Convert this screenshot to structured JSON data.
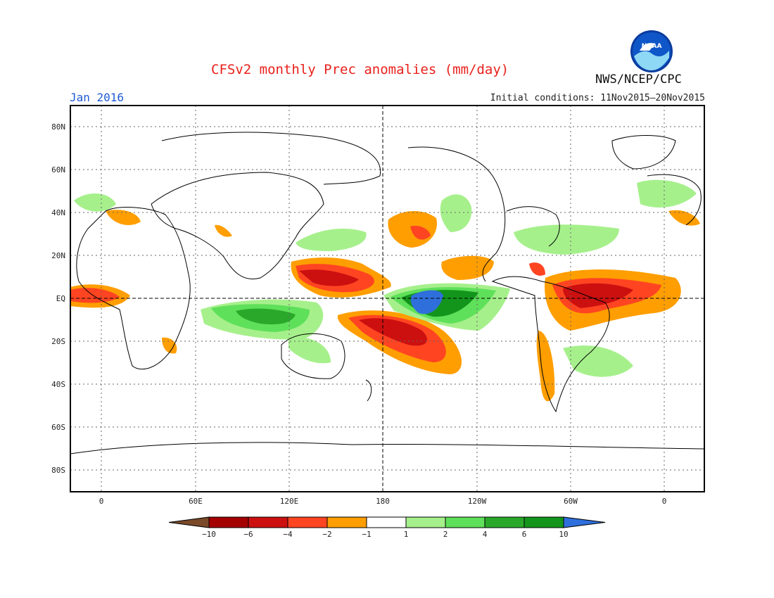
{
  "title": "CFSv2 monthly Prec anomalies (mm/day)",
  "period": "Jan 2016",
  "initial_conditions": "Initial conditions: 11Nov2015–20Nov2015",
  "agency": "NWS/NCEP/CPC",
  "logo_text": "NOAA",
  "lat_labels": [
    "80N",
    "60N",
    "40N",
    "20N",
    "EQ",
    "20S",
    "40S",
    "60S",
    "80S"
  ],
  "lon_labels": [
    "0",
    "60E",
    "120E",
    "180",
    "120W",
    "60W",
    "0"
  ],
  "legend": {
    "labels": [
      "−10",
      "−6",
      "−4",
      "−2",
      "−1",
      "1",
      "2",
      "4",
      "6",
      "10"
    ],
    "colors": [
      "#7a4a2a",
      "#a50000",
      "#cc1010",
      "#ff4422",
      "#ff9e00",
      "#ffffff",
      "#a6f08c",
      "#5fe05a",
      "#2aa82a",
      "#13951c",
      "#2f6fdc"
    ]
  }
}
